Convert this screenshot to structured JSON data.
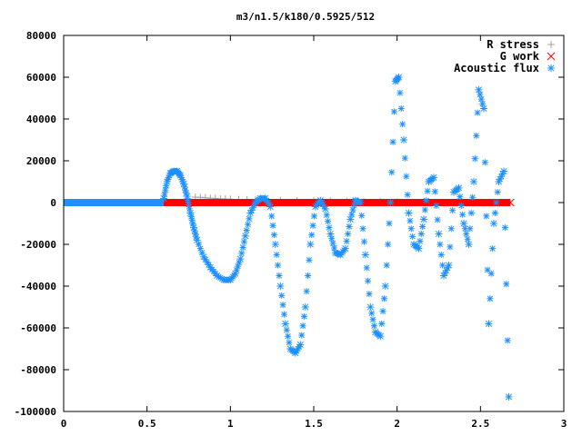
{
  "chart_data": {
    "type": "scatter",
    "title": "m3/n1.5/k180/0.5925/512",
    "xlabel": "",
    "ylabel": "",
    "xlim": [
      0,
      3
    ],
    "ylim": [
      -100000,
      80000
    ],
    "x_ticks": [
      "0",
      "0.5",
      "1",
      "1.5",
      "2",
      "2.5",
      "3"
    ],
    "y_ticks": [
      "-100000",
      "-80000",
      "-60000",
      "-40000",
      "-20000",
      "0",
      "20000",
      "40000",
      "60000",
      "80000"
    ],
    "grid": false,
    "legend_position": "top-right",
    "series": [
      {
        "name": "R stress",
        "marker": "plus",
        "color": "#a0a0a0",
        "x": [
          0.79,
          0.82,
          0.85,
          0.88,
          0.91,
          0.94,
          0.97,
          1.0,
          1.05,
          1.1,
          1.15,
          1.2,
          1.3,
          1.4,
          1.5,
          1.6,
          1.7,
          1.8,
          1.9,
          2.0
        ],
        "y": [
          2600,
          2500,
          2300,
          2100,
          2000,
          1800,
          1700,
          1600,
          1400,
          1300,
          1200,
          1100,
          1000,
          900,
          800,
          700,
          600,
          500,
          400,
          300
        ]
      },
      {
        "name": "G work",
        "marker": "cross",
        "color": "#ff0000",
        "x": [
          0.6,
          2.68
        ],
        "y": [
          0,
          0
        ]
      },
      {
        "name": "Acoustic flux",
        "marker": "star",
        "color": "#1e90ff",
        "x": [
          0.6,
          0.62,
          0.64,
          0.66,
          0.68,
          0.7,
          0.72,
          0.74,
          0.76,
          0.78,
          0.8,
          0.84,
          0.88,
          0.92,
          0.96,
          1.0,
          1.03,
          1.06,
          1.09,
          1.12,
          1.15,
          1.18,
          1.21,
          1.24,
          1.27,
          1.3,
          1.33,
          1.36,
          1.39,
          1.42,
          1.45,
          1.48,
          1.51,
          1.54,
          1.57,
          1.6,
          1.63,
          1.66,
          1.69,
          1.72,
          1.75,
          1.78,
          1.81,
          1.84,
          1.87,
          1.9,
          1.93,
          1.96,
          1.99,
          2.01,
          2.04,
          2.07,
          2.1,
          2.13,
          2.16,
          2.19,
          2.22,
          2.25,
          2.28,
          2.31,
          2.34,
          2.37,
          2.4,
          2.43,
          2.46,
          2.49,
          2.52,
          2.55,
          2.58,
          2.61,
          2.64,
          2.67
        ],
        "y": [
          2000,
          10000,
          14000,
          15000,
          15000,
          13000,
          9000,
          3000,
          -5000,
          -12000,
          -18000,
          -26000,
          -31000,
          -35000,
          -37000,
          -37000,
          -34000,
          -27000,
          -16000,
          -5000,
          0,
          2000,
          2000,
          -2000,
          -20000,
          -40000,
          -58000,
          -70000,
          -72000,
          -68000,
          -50000,
          -20000,
          -2000,
          1000,
          -3000,
          -15000,
          -24000,
          -25000,
          -22000,
          -8000,
          1000,
          0,
          -25000,
          -50000,
          -62000,
          -64000,
          -40000,
          0,
          58000,
          60000,
          30000,
          -5000,
          -20000,
          -22000,
          -8000,
          10000,
          12000,
          -15000,
          -35000,
          -30000,
          5000,
          7000,
          -10000,
          -20000,
          10000,
          54000,
          45000,
          -58000,
          -10000,
          10000,
          15000,
          -93000
        ]
      }
    ]
  }
}
